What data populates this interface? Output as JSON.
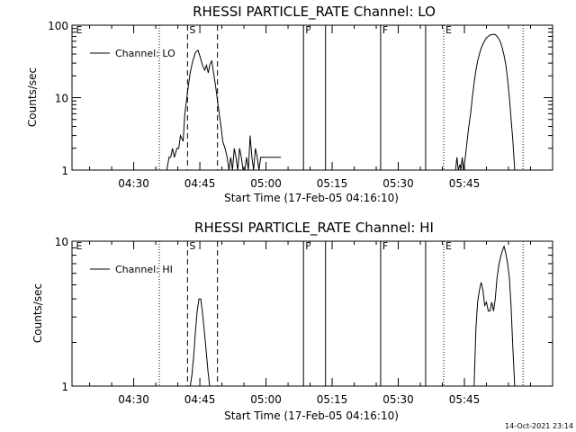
{
  "timestamp": "14-Oct-2021 23:14",
  "chart_data": [
    {
      "type": "line",
      "title": "RHESSI PARTICLE_RATE Channel: LO",
      "xlabel": "Start Time (17-Feb-05 04:16:10)",
      "ylabel": "Counts/sec",
      "yscale": "log",
      "ylim": [
        1,
        100
      ],
      "xlim_minutes": [
        0,
        109
      ],
      "x_ticks": [
        {
          "label": "04:30",
          "t": 14
        },
        {
          "label": "04:45",
          "t": 29
        },
        {
          "label": "05:00",
          "t": 44
        },
        {
          "label": "05:15",
          "t": 59
        },
        {
          "label": "05:30",
          "t": 74
        },
        {
          "label": "05:45",
          "t": 89
        }
      ],
      "y_ticks": [
        {
          "label": "1",
          "v": 1
        },
        {
          "label": "10",
          "v": 10
        },
        {
          "label": "100",
          "v": 100
        }
      ],
      "legend": {
        "label": "Channel: LO",
        "position": "top-left"
      },
      "flags": [
        {
          "label": "E",
          "t": 0.5,
          "style": "none"
        },
        {
          "label": "",
          "t": 19.8,
          "style": "dotted"
        },
        {
          "label": "S",
          "t": 26.2,
          "style": "dashed"
        },
        {
          "label": "",
          "t": 33.0,
          "style": "dashed"
        },
        {
          "label": "F",
          "t": 52.5,
          "style": "solid"
        },
        {
          "label": "",
          "t": 57.5,
          "style": "solid"
        },
        {
          "label": "F",
          "t": 70.0,
          "style": "solid"
        },
        {
          "label": "",
          "t": 80.2,
          "style": "solid"
        },
        {
          "label": "E",
          "t": 84.3,
          "style": "dotted"
        },
        {
          "label": "",
          "t": 102.3,
          "style": "dotted"
        }
      ],
      "series": [
        {
          "name": "Channel: LO",
          "segments": [
            {
              "t": [
                21.5,
                22.0,
                22.4,
                22.8,
                23.2,
                23.8,
                24.2,
                24.6,
                25.2,
                25.6,
                26.2,
                26.8,
                27.4,
                28.0,
                28.6,
                29.2,
                29.6,
                30.1,
                30.5,
                30.9,
                31.3,
                31.7,
                32.1,
                32.6,
                33.0,
                33.4,
                33.8,
                34.2,
                34.7,
                35.2,
                35.6,
                36.0,
                36.4,
                36.8,
                37.2,
                37.6,
                38.0,
                38.4,
                38.8,
                39.2,
                39.6,
                40.0,
                40.4,
                40.8,
                41.2,
                41.6,
                42.0,
                42.4,
                42.8,
                43.2,
                43.6,
                44.0,
                44.5,
                45.0,
                45.5,
                46.0,
                46.5,
                47.0,
                47.4
              ],
              "v": [
                1,
                1.5,
                1.5,
                2,
                1.5,
                2,
                2,
                3,
                2.5,
                6,
                12,
                22,
                32,
                42,
                45,
                34,
                28,
                24,
                28,
                22,
                29,
                32,
                22,
                14,
                9,
                6,
                4,
                2.5,
                2,
                1.5,
                1,
                1.5,
                1,
                2,
                1.5,
                1,
                2,
                1.5,
                1,
                1,
                1.5,
                1,
                3,
                1.5,
                1,
                2,
                1.5,
                1,
                1.5,
                1.5,
                1.5,
                1.5,
                1.5,
                1.5,
                1.5,
                1.5,
                1.5,
                1.5,
                1.5
              ]
            },
            {
              "t": [
                87.0,
                87.3,
                87.6,
                88.0,
                88.2,
                88.5,
                88.8,
                89.2,
                89.6,
                90.0,
                90.4,
                90.8,
                91.2,
                91.6,
                92.0,
                92.4,
                92.8,
                93.2,
                93.6,
                94.0,
                94.4,
                94.8,
                95.2,
                95.6,
                96.0,
                96.4,
                96.8,
                97.2,
                97.6,
                98.0,
                98.4,
                98.8,
                99.2,
                99.6,
                100.0,
                100.4
              ],
              "v": [
                1,
                1.5,
                1,
                1.2,
                1,
                1.5,
                1,
                1.5,
                2.5,
                4,
                6,
                10,
                16,
                24,
                32,
                40,
                48,
                55,
                61,
                67,
                70,
                73,
                74,
                75,
                74,
                70,
                65,
                58,
                48,
                38,
                28,
                18,
                10,
                5,
                2.5,
                1
              ]
            }
          ]
        }
      ]
    },
    {
      "type": "line",
      "title": "RHESSI PARTICLE_RATE Channel: HI",
      "xlabel": "Start Time (17-Feb-05 04:16:10)",
      "ylabel": "Counts/sec",
      "yscale": "log",
      "ylim": [
        1,
        10
      ],
      "xlim_minutes": [
        0,
        109
      ],
      "x_ticks": [
        {
          "label": "04:30",
          "t": 14
        },
        {
          "label": "04:45",
          "t": 29
        },
        {
          "label": "05:00",
          "t": 44
        },
        {
          "label": "05:15",
          "t": 59
        },
        {
          "label": "05:30",
          "t": 74
        },
        {
          "label": "05:45",
          "t": 89
        }
      ],
      "y_ticks": [
        {
          "label": "1",
          "v": 1
        },
        {
          "label": "10",
          "v": 10
        }
      ],
      "legend": {
        "label": "Channel: HI",
        "position": "top-left"
      },
      "flags": [
        {
          "label": "E",
          "t": 0.5,
          "style": "none"
        },
        {
          "label": "",
          "t": 19.8,
          "style": "dotted"
        },
        {
          "label": "S",
          "t": 26.2,
          "style": "dashed"
        },
        {
          "label": "",
          "t": 33.0,
          "style": "dashed"
        },
        {
          "label": "F",
          "t": 52.5,
          "style": "solid"
        },
        {
          "label": "",
          "t": 57.5,
          "style": "solid"
        },
        {
          "label": "F",
          "t": 70.0,
          "style": "solid"
        },
        {
          "label": "",
          "t": 80.2,
          "style": "solid"
        },
        {
          "label": "E",
          "t": 84.3,
          "style": "dotted"
        },
        {
          "label": "",
          "t": 102.3,
          "style": "dotted"
        }
      ],
      "series": [
        {
          "name": "Channel: HI",
          "segments": [
            {
              "t": [
                26.8,
                27.2,
                27.6,
                28.0,
                28.4,
                28.8,
                29.2,
                29.6,
                30.0,
                30.4,
                30.8,
                31.2
              ],
              "v": [
                1,
                1.2,
                1.6,
                2.4,
                3.3,
                4.0,
                4.0,
                3.2,
                2.4,
                1.8,
                1.3,
                1
              ]
            },
            {
              "t": [
                91.2,
                91.6,
                92.0,
                92.4,
                92.8,
                93.2,
                93.6,
                94.0,
                94.4,
                94.8,
                95.2,
                95.6,
                96.0,
                96.4,
                96.8,
                97.2,
                97.6,
                98.0,
                98.4,
                98.8,
                99.2,
                99.6,
                100.0,
                100.4
              ],
              "v": [
                1,
                2.5,
                3.8,
                4.6,
                5.2,
                4.6,
                3.6,
                3.8,
                3.3,
                3.3,
                3.8,
                3.3,
                4.0,
                5.6,
                6.8,
                7.8,
                8.6,
                9.2,
                8.2,
                7.0,
                5.6,
                3.5,
                1.8,
                1
              ]
            }
          ]
        }
      ]
    }
  ]
}
